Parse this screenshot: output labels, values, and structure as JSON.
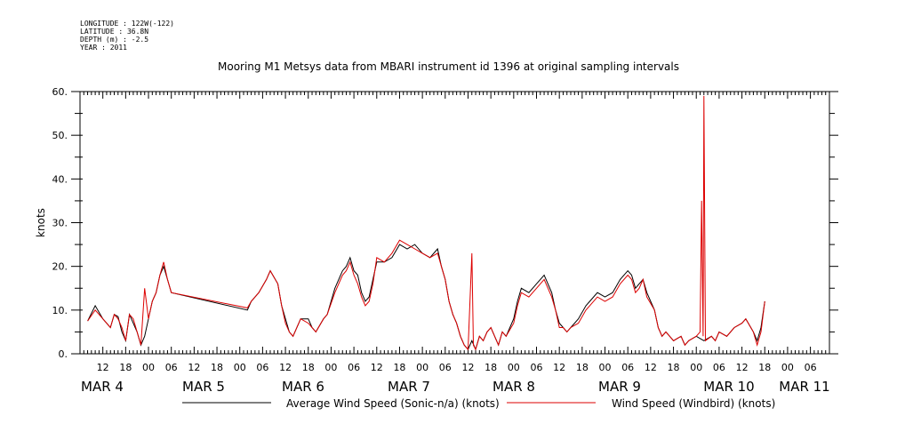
{
  "header": {
    "longitude": "LONGITUDE : 122W(-122)",
    "latitude": "LATITUDE : 36.8N",
    "depth": "DEPTH (m) : -2.5",
    "year": "YEAR : 2011"
  },
  "chart_data": {
    "type": "line",
    "title": "Mooring M1 Metsys data from MBARI instrument id 1396 at original sampling intervals",
    "ylabel": "knots",
    "xlabel": "",
    "ylim": [
      0,
      60
    ],
    "xlim_hours": [
      -18,
      179
    ],
    "y_ticks": [
      "0.",
      "10.",
      "20.",
      "30.",
      "40.",
      "50.",
      "60."
    ],
    "x_hour_ticks": [
      "12",
      "18",
      "00",
      "06",
      "12",
      "18",
      "00",
      "06",
      "12",
      "18",
      "00",
      "06",
      "12",
      "18",
      "00",
      "06",
      "12",
      "18",
      "00",
      "06",
      "12",
      "18",
      "00",
      "06",
      "12",
      "18",
      "00",
      "06",
      "12",
      "18",
      "00",
      "06"
    ],
    "x_day_labels": [
      "MAR  4",
      "MAR  5",
      "MAR  6",
      "MAR  7",
      "MAR  8",
      "MAR  9",
      "MAR 10",
      "MAR 11"
    ],
    "grid": false,
    "series": [
      {
        "name": "Average Wind Speed (Sonic-n/a) (knots)",
        "color": "#000000",
        "points": [
          [
            -16,
            7.5
          ],
          [
            -14,
            11
          ],
          [
            -12,
            8
          ],
          [
            -10,
            6
          ],
          [
            -9,
            9
          ],
          [
            -8,
            8.5
          ],
          [
            -7,
            5
          ],
          [
            -6,
            3
          ],
          [
            -5,
            9
          ],
          [
            -4,
            7
          ],
          [
            -3,
            5
          ],
          [
            -2,
            2
          ],
          [
            -1,
            4
          ],
          [
            0,
            8
          ],
          [
            1,
            12
          ],
          [
            2,
            14
          ],
          [
            3,
            18
          ],
          [
            4,
            20
          ],
          [
            5,
            17
          ],
          [
            6,
            14
          ],
          [
            26,
            10
          ],
          [
            27,
            12
          ],
          [
            29,
            14
          ],
          [
            31,
            17
          ],
          [
            32,
            19
          ],
          [
            34,
            16
          ],
          [
            35,
            11
          ],
          [
            36,
            8
          ],
          [
            37,
            5
          ],
          [
            38,
            4
          ],
          [
            40,
            8
          ],
          [
            42,
            8
          ],
          [
            43,
            6
          ],
          [
            44,
            5
          ],
          [
            46,
            8
          ],
          [
            47,
            9
          ],
          [
            49,
            15
          ],
          [
            50,
            17
          ],
          [
            51,
            19
          ],
          [
            52,
            20
          ],
          [
            53,
            22
          ],
          [
            54,
            19
          ],
          [
            55,
            18
          ],
          [
            56,
            14
          ],
          [
            57,
            12
          ],
          [
            58,
            13
          ],
          [
            59,
            17
          ],
          [
            60,
            21
          ],
          [
            62,
            21
          ],
          [
            64,
            22
          ],
          [
            66,
            25
          ],
          [
            68,
            24
          ],
          [
            70,
            25
          ],
          [
            72,
            23
          ],
          [
            74,
            22
          ],
          [
            76,
            24
          ],
          [
            77,
            20
          ],
          [
            78,
            17
          ],
          [
            79,
            12
          ],
          [
            80,
            9
          ],
          [
            81,
            7
          ],
          [
            82,
            4
          ],
          [
            83,
            2
          ],
          [
            84,
            1
          ],
          [
            85,
            3
          ],
          [
            86,
            1
          ],
          [
            87,
            4
          ],
          [
            88,
            3
          ],
          [
            89,
            5
          ],
          [
            90,
            6
          ],
          [
            91,
            4
          ],
          [
            92,
            2
          ],
          [
            93,
            5
          ],
          [
            94,
            4
          ],
          [
            96,
            8
          ],
          [
            97,
            12
          ],
          [
            98,
            15
          ],
          [
            100,
            14
          ],
          [
            102,
            16
          ],
          [
            104,
            18
          ],
          [
            106,
            14
          ],
          [
            107,
            10
          ],
          [
            108,
            7
          ],
          [
            109,
            6
          ],
          [
            110,
            5
          ],
          [
            111,
            6
          ],
          [
            113,
            8
          ],
          [
            115,
            11
          ],
          [
            116,
            12
          ],
          [
            118,
            14
          ],
          [
            120,
            13
          ],
          [
            122,
            14
          ],
          [
            124,
            17
          ],
          [
            126,
            19
          ],
          [
            127,
            18
          ],
          [
            128,
            15
          ],
          [
            129,
            16
          ],
          [
            130,
            17
          ],
          [
            131,
            14
          ],
          [
            133,
            10
          ],
          [
            134,
            6
          ],
          [
            135,
            4
          ],
          [
            136,
            5
          ],
          [
            137,
            4
          ],
          [
            138,
            3
          ],
          [
            140,
            4
          ],
          [
            141,
            2
          ],
          [
            142,
            3
          ],
          [
            144,
            4
          ],
          [
            146,
            3
          ],
          [
            148,
            4
          ],
          [
            149,
            3
          ],
          [
            150,
            5
          ],
          [
            152,
            4
          ],
          [
            154,
            6
          ],
          [
            156,
            7
          ],
          [
            157,
            8
          ],
          [
            159,
            5
          ],
          [
            160,
            3
          ],
          [
            161,
            6
          ],
          [
            162,
            12
          ]
        ]
      },
      {
        "name": "Wind Speed (Windbird) (knots)",
        "color": "#dd0000",
        "points": [
          [
            -16,
            7.5
          ],
          [
            -14,
            10
          ],
          [
            -12,
            8
          ],
          [
            -10,
            6
          ],
          [
            -9,
            9
          ],
          [
            -8,
            8
          ],
          [
            -7,
            6
          ],
          [
            -6,
            3
          ],
          [
            -5,
            9
          ],
          [
            -4,
            8
          ],
          [
            -3,
            5
          ],
          [
            -2,
            2
          ],
          [
            -1,
            15
          ],
          [
            0,
            8
          ],
          [
            1,
            12
          ],
          [
            2,
            14
          ],
          [
            3,
            18
          ],
          [
            4,
            21
          ],
          [
            5,
            17
          ],
          [
            6,
            14
          ],
          [
            26,
            10.5
          ],
          [
            27,
            12
          ],
          [
            29,
            14
          ],
          [
            31,
            17
          ],
          [
            32,
            19
          ],
          [
            34,
            16
          ],
          [
            35,
            11
          ],
          [
            36,
            7
          ],
          [
            37,
            5
          ],
          [
            38,
            4
          ],
          [
            40,
            8
          ],
          [
            42,
            7
          ],
          [
            43,
            6
          ],
          [
            44,
            5
          ],
          [
            46,
            8
          ],
          [
            47,
            9
          ],
          [
            49,
            14
          ],
          [
            50,
            16
          ],
          [
            51,
            18
          ],
          [
            52,
            19
          ],
          [
            53,
            21
          ],
          [
            54,
            18
          ],
          [
            55,
            16
          ],
          [
            56,
            13
          ],
          [
            57,
            11
          ],
          [
            58,
            12
          ],
          [
            59,
            16
          ],
          [
            60,
            22
          ],
          [
            62,
            21
          ],
          [
            64,
            23
          ],
          [
            66,
            26
          ],
          [
            68,
            25
          ],
          [
            70,
            24
          ],
          [
            72,
            23
          ],
          [
            74,
            22
          ],
          [
            76,
            23
          ],
          [
            77,
            20
          ],
          [
            78,
            17
          ],
          [
            79,
            12
          ],
          [
            80,
            9
          ],
          [
            81,
            7
          ],
          [
            82,
            4
          ],
          [
            83,
            2
          ],
          [
            84,
            1
          ],
          [
            85,
            23
          ],
          [
            85.4,
            2
          ],
          [
            86,
            1
          ],
          [
            87,
            4
          ],
          [
            88,
            3
          ],
          [
            89,
            5
          ],
          [
            90,
            6
          ],
          [
            91,
            4
          ],
          [
            92,
            2
          ],
          [
            93,
            5
          ],
          [
            94,
            4
          ],
          [
            96,
            7
          ],
          [
            97,
            11
          ],
          [
            98,
            14
          ],
          [
            100,
            13
          ],
          [
            102,
            15
          ],
          [
            104,
            17
          ],
          [
            106,
            13
          ],
          [
            107,
            10
          ],
          [
            108,
            6
          ],
          [
            109,
            6
          ],
          [
            110,
            5
          ],
          [
            111,
            6
          ],
          [
            113,
            7
          ],
          [
            115,
            10
          ],
          [
            116,
            11
          ],
          [
            118,
            13
          ],
          [
            120,
            12
          ],
          [
            122,
            13
          ],
          [
            124,
            16
          ],
          [
            126,
            18
          ],
          [
            127,
            17
          ],
          [
            128,
            14
          ],
          [
            129,
            15
          ],
          [
            130,
            17
          ],
          [
            131,
            13
          ],
          [
            133,
            10
          ],
          [
            134,
            6
          ],
          [
            135,
            4
          ],
          [
            136,
            5
          ],
          [
            137,
            4
          ],
          [
            138,
            3
          ],
          [
            140,
            4
          ],
          [
            141,
            2
          ],
          [
            142,
            3
          ],
          [
            144,
            4
          ],
          [
            145,
            5
          ],
          [
            145.4,
            35
          ],
          [
            145.8,
            4
          ],
          [
            146,
            59
          ],
          [
            146.4,
            3
          ],
          [
            148,
            4
          ],
          [
            149,
            3
          ],
          [
            150,
            5
          ],
          [
            152,
            4
          ],
          [
            154,
            6
          ],
          [
            156,
            7
          ],
          [
            157,
            8
          ],
          [
            159,
            5
          ],
          [
            160,
            2
          ],
          [
            161,
            5
          ],
          [
            162,
            12
          ]
        ]
      }
    ]
  }
}
